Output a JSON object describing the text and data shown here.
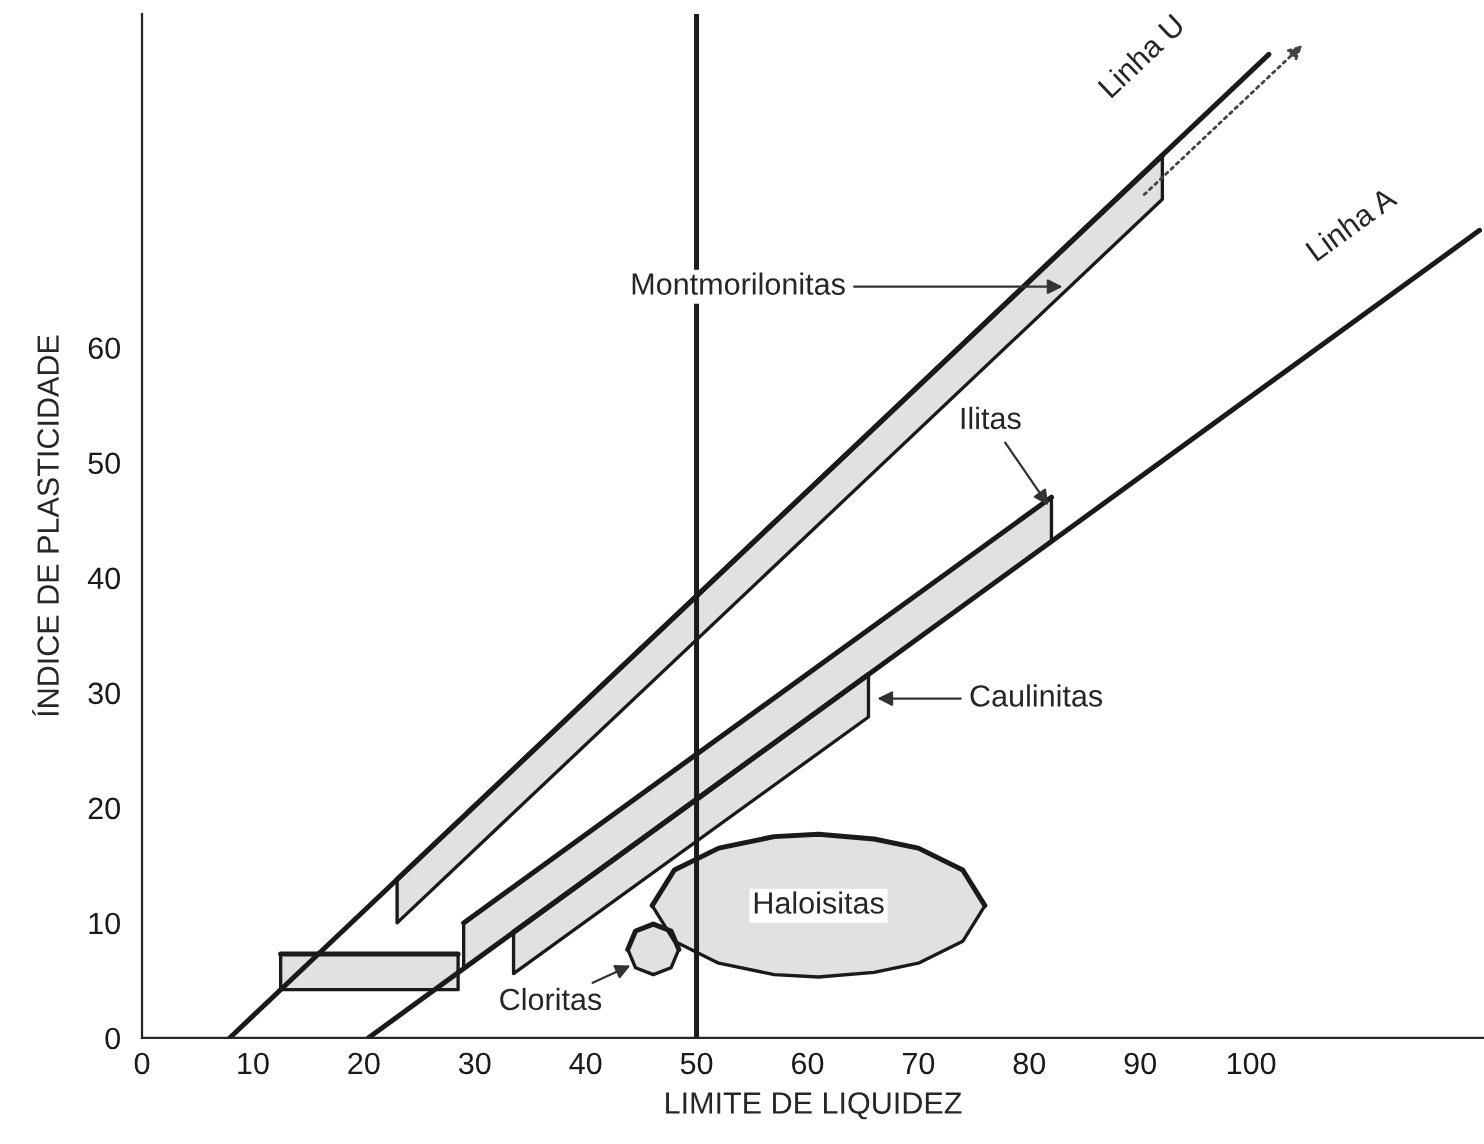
{
  "chart_data": {
    "type": "line",
    "xlabel": "LIMITE DE LIQUIDEZ",
    "ylabel": "ÍNDICE DE PLASTICIDADE",
    "xlim": [
      0,
      121
    ],
    "ylim": [
      0,
      89
    ],
    "xticks": [
      0,
      10,
      20,
      30,
      40,
      50,
      60,
      70,
      80,
      90,
      100
    ],
    "yticks": [
      0,
      10,
      20,
      30,
      40,
      50,
      60
    ],
    "series": [
      {
        "name": "Linha U",
        "type": "line",
        "color": "#1a1a1a",
        "x": [
          7.9,
          101.6
        ],
        "values": [
          0,
          85.5
        ]
      },
      {
        "name": "Linha A",
        "type": "line",
        "color": "#1a1a1a",
        "x": [
          20.4,
          120.6
        ],
        "values": [
          0,
          70.2
        ]
      },
      {
        "type": "line",
        "color": "#1a1a1a",
        "x": [
          23,
          92
        ],
        "values": [
          13.8,
          76.7
        ],
        "lower": [
          10,
          72.9
        ],
        "upper": [
          13.8,
          76.7
        ]
      },
      {
        "type": "line",
        "color": "#1a1a1a",
        "x": [
          12.5,
          28.5
        ],
        "values": [
          7.3,
          7.3
        ],
        "lower": [
          4.2,
          4.2
        ],
        "upper": [
          7.3,
          7.3
        ]
      },
      {
        "type": "line",
        "color": "#1a1a1a",
        "x": [
          29,
          82
        ],
        "values": [
          10,
          47
        ],
        "lower": [
          6,
          43.2
        ],
        "upper": [
          10,
          47
        ]
      },
      {
        "type": "line",
        "color": "#1a1a1a",
        "x": [
          33.5,
          65.5
        ],
        "values": [
          9.2,
          31.6
        ],
        "lower": [
          5.6,
          27.9
        ],
        "upper": [
          9.2,
          31.6
        ]
      },
      {
        "type": "line",
        "color": "#1a1a1a",
        "x": [
          43.8,
          44.5,
          46.1,
          47.7,
          48.4
        ],
        "values": [
          7.7,
          9.3,
          9.9,
          9.3,
          7.7
        ],
        "lower": [
          7.7,
          6.1,
          5.5,
          6.1,
          7.7
        ],
        "upper": [
          7.7,
          9.3,
          9.9,
          9.3,
          7.7
        ]
      },
      {
        "name": "Haloisitas",
        "type": "line",
        "color": "#1a1a1a",
        "x": [
          46,
          48,
          52,
          57,
          61,
          66,
          70,
          74,
          76
        ],
        "values": [
          11.5,
          14.6,
          16.5,
          17.5,
          17.7,
          17.3,
          16.5,
          14.6,
          11.5
        ],
        "lower": [
          11.5,
          8.4,
          6.5,
          5.5,
          5.3,
          5.7,
          6.5,
          8.4,
          11.5
        ],
        "upper": [
          11.5,
          14.6,
          16.5,
          17.5,
          17.7,
          17.3,
          16.5,
          14.6,
          11.5
        ]
      }
    ],
    "ref_lines": [
      {
        "axis": "x",
        "value": 50,
        "color": "#1a1a1a"
      }
    ],
    "annotations": [
      {
        "text": "Montmorilonitas",
        "x": 83.5,
        "y": 65.3
      },
      {
        "text": "Ilitas",
        "x": 82,
        "y": 45.9
      },
      {
        "text": "Caulinitas",
        "x": 65.8,
        "y": 29.5
      },
      {
        "text": "Cloritas",
        "x": 44.5,
        "y": 6.5
      }
    ]
  }
}
